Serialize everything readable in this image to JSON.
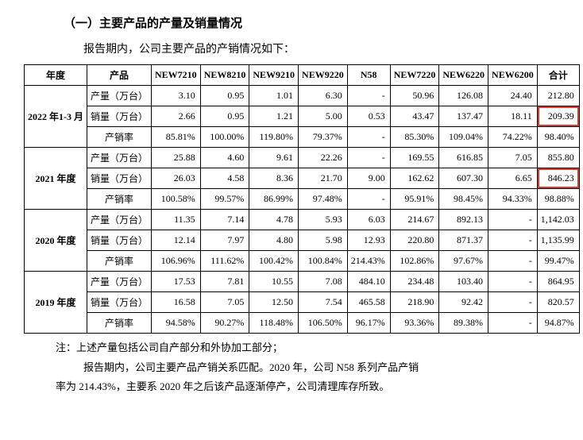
{
  "section_title": "（一）主要产品的产量及销量情况",
  "intro": "报告期内，公司主要产品的产销情况如下：",
  "headers": {
    "year": "年度",
    "product": "产品",
    "c1": "NEW7210",
    "c2": "NEW8210",
    "c3": "NEW9210",
    "c4": "NEW9220",
    "c5": "N58",
    "c6": "NEW7220",
    "c7": "NEW6220",
    "c8": "NEW6200",
    "total": "合计"
  },
  "row_labels": {
    "output": "产量（万台）",
    "sales": "销量（万台）",
    "ratio": "产销率"
  },
  "years": {
    "y2022": "2022 年1-3 月",
    "y2021": "2021 年度",
    "y2020": "2020 年度",
    "y2019": "2019 年度"
  },
  "data": {
    "y2022": {
      "output": [
        "3.10",
        "0.95",
        "1.01",
        "6.30",
        "-",
        "50.96",
        "126.08",
        "24.40",
        "212.80"
      ],
      "sales": [
        "2.66",
        "0.95",
        "1.21",
        "5.00",
        "0.53",
        "43.47",
        "137.47",
        "18.11",
        "209.39"
      ],
      "ratio": [
        "85.81%",
        "100.00%",
        "119.80%",
        "79.37%",
        "-",
        "85.30%",
        "109.04%",
        "74.22%",
        "98.40%"
      ]
    },
    "y2021": {
      "output": [
        "25.88",
        "4.60",
        "9.61",
        "22.26",
        "-",
        "169.55",
        "616.85",
        "7.05",
        "855.80"
      ],
      "sales": [
        "26.03",
        "4.58",
        "8.36",
        "21.70",
        "9.00",
        "162.62",
        "607.30",
        "6.65",
        "846.23"
      ],
      "ratio": [
        "100.58%",
        "99.57%",
        "86.99%",
        "97.48%",
        "-",
        "95.91%",
        "98.45%",
        "94.33%",
        "98.88%"
      ]
    },
    "y2020": {
      "output": [
        "11.35",
        "7.14",
        "4.78",
        "5.93",
        "6.03",
        "214.67",
        "892.13",
        "-",
        "1,142.03"
      ],
      "sales": [
        "12.14",
        "7.97",
        "4.80",
        "5.98",
        "12.93",
        "220.80",
        "871.37",
        "-",
        "1,135.99"
      ],
      "ratio": [
        "106.96%",
        "111.62%",
        "100.42%",
        "100.84%",
        "214.43%",
        "102.86%",
        "97.67%",
        "-",
        "99.47%"
      ]
    },
    "y2019": {
      "output": [
        "17.53",
        "7.81",
        "10.55",
        "7.08",
        "484.10",
        "234.48",
        "103.40",
        "-",
        "864.95"
      ],
      "sales": [
        "16.58",
        "7.05",
        "12.50",
        "7.54",
        "465.58",
        "218.90",
        "92.42",
        "-",
        "820.57"
      ],
      "ratio": [
        "94.58%",
        "90.27%",
        "118.48%",
        "106.50%",
        "96.17%",
        "93.36%",
        "89.38%",
        "-",
        "94.87%"
      ]
    }
  },
  "footnote": {
    "line1": "注：上述产量包括公司自产部分和外协加工部分；",
    "line2": "报告期内，公司主要产品产销关系匹配。2020 年，公司 N58 系列产品产销",
    "line3": "率为 214.43%，主要系 2020 年之后该产品逐渐停产，公司清理库存所致。"
  },
  "highlight_cells": [
    "y2022-sales-total",
    "y2021-sales-total"
  ],
  "colors": {
    "highlight_border": "#d83a2b",
    "border": "#000000",
    "text": "#000000",
    "bg": "#ffffff"
  }
}
